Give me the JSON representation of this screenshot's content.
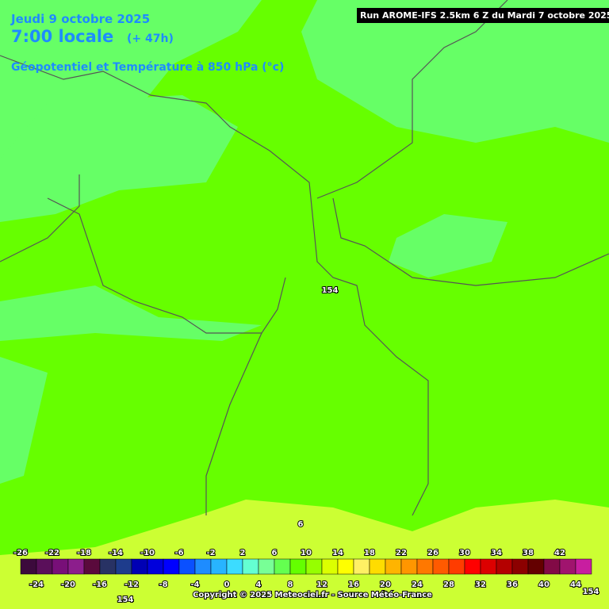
{
  "header": {
    "date": "Jeudi 9 octobre 2025",
    "time": "7:00 locale",
    "lead": "(+ 47h)",
    "parameter": "Géopotentiel et Température à 850 hPa (°c)",
    "run": "Run AROME-IFS 2.5km 6 Z du Mardi 7 octobre 2025"
  },
  "map_labels": [
    154,
    6,
    154,
    154
  ],
  "colorbar": {
    "top_labels": [
      -26,
      -22,
      -18,
      -14,
      -10,
      -6,
      -2,
      2,
      6,
      10,
      14,
      18,
      22,
      26,
      30,
      34,
      38,
      42
    ],
    "bottom_labels": [
      -24,
      -20,
      -16,
      -12,
      -8,
      -4,
      0,
      4,
      8,
      12,
      16,
      20,
      24,
      28,
      32,
      36,
      40,
      44
    ],
    "colors": [
      "#3c0a3c",
      "#5a0f5a",
      "#780f78",
      "#8c1e8c",
      "#5a0a3c",
      "#283264",
      "#1e3c8c",
      "#0000b4",
      "#0000dc",
      "#0000ff",
      "#0a50ff",
      "#1e8cff",
      "#28b4ff",
      "#3cdcff",
      "#64ffd2",
      "#78ff96",
      "#64ff50",
      "#64ff00",
      "#96ff00",
      "#dcff00",
      "#ffff00",
      "#fff064",
      "#ffdc00",
      "#ffb400",
      "#ff9600",
      "#ff7800",
      "#ff5a00",
      "#ff3c00",
      "#ff0000",
      "#dc0000",
      "#b40000",
      "#8c0000",
      "#640000",
      "#820a46",
      "#a0146e",
      "#c81ea0"
    ]
  },
  "footer": {
    "copyright": "Copyright © 2025 Meteociel.fr - Source Météo-France"
  }
}
